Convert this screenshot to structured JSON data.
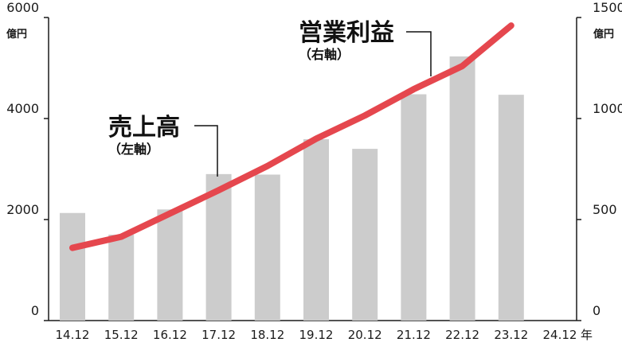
{
  "chart_data": {
    "type": "bar",
    "categories": [
      "14.12",
      "15.12",
      "16.12",
      "17.12",
      "18.12",
      "19.12",
      "20.12",
      "21.12",
      "22.12",
      "23.12",
      "24.12"
    ],
    "x_suffix": "年",
    "left_axis": {
      "unit": "億円",
      "ylim": [
        0,
        6000
      ],
      "ticks": [
        "0",
        "2000",
        "4000",
        "6000"
      ],
      "tick_values": [
        0,
        2000,
        4000,
        6000
      ]
    },
    "right_axis": {
      "unit": "億円",
      "ylim": [
        0,
        1500
      ],
      "ticks": [
        "0",
        "500",
        "1000",
        "1500"
      ],
      "tick_values": [
        0,
        500,
        1000,
        1500
      ]
    },
    "series": [
      {
        "name": "売上高",
        "name_note": "（左軸）",
        "type": "bar",
        "axis": "left",
        "color": "#cccccc",
        "values": [
          2130,
          1700,
          2200,
          2900,
          2890,
          3590,
          3400,
          4480,
          5230,
          4470,
          null
        ]
      },
      {
        "name": "営業利益",
        "name_note": "（右軸）",
        "type": "line",
        "axis": "right",
        "color": "#e5474e",
        "values": [
          360,
          415,
          530,
          645,
          765,
          900,
          1015,
          1145,
          1260,
          1460,
          null
        ]
      }
    ],
    "grid": false
  }
}
